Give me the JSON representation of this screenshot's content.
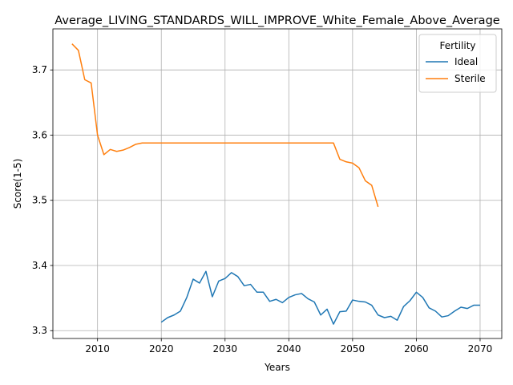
{
  "chart_data": {
    "type": "line",
    "title": "Average_LIVING_STANDARDS_WILL_IMPROVE_White_Female_Above_Average",
    "xlabel": "Years",
    "ylabel": "Score(1-5)",
    "xlim": [
      2003,
      2073.4
    ],
    "ylim": [
      3.288,
      3.763
    ],
    "xticks": [
      2010,
      2020,
      2030,
      2040,
      2050,
      2060,
      2070
    ],
    "yticks": [
      3.3,
      3.4,
      3.5,
      3.6,
      3.7
    ],
    "grid": true,
    "legend": {
      "title": "Fertility",
      "position": "top-right"
    },
    "series": [
      {
        "name": "Ideal",
        "color": "#1f77b4",
        "x": [
          2020,
          2021,
          2022,
          2023,
          2024,
          2025,
          2026,
          2027,
          2028,
          2029,
          2030,
          2031,
          2032,
          2033,
          2034,
          2035,
          2036,
          2037,
          2038,
          2039,
          2040,
          2041,
          2042,
          2043,
          2044,
          2045,
          2046,
          2047,
          2048,
          2049,
          2050,
          2051,
          2052,
          2053,
          2054,
          2055,
          2056,
          2057,
          2058,
          2059,
          2060,
          2061,
          2062,
          2063,
          2064,
          2065,
          2066,
          2067,
          2068,
          2069,
          2070
        ],
        "y": [
          3.313,
          3.32,
          3.324,
          3.33,
          3.351,
          3.379,
          3.373,
          3.391,
          3.352,
          3.376,
          3.38,
          3.389,
          3.383,
          3.369,
          3.371,
          3.359,
          3.359,
          3.345,
          3.348,
          3.343,
          3.351,
          3.355,
          3.357,
          3.349,
          3.344,
          3.324,
          3.333,
          3.31,
          3.329,
          3.33,
          3.347,
          3.345,
          3.344,
          3.339,
          3.324,
          3.32,
          3.322,
          3.316,
          3.337,
          3.346,
          3.359,
          3.351,
          3.335,
          3.33,
          3.321,
          3.323,
          3.33,
          3.336,
          3.334,
          3.339,
          3.339
        ]
      },
      {
        "name": "Sterile",
        "color": "#ff7f0e",
        "x": [
          2006,
          2007,
          2008,
          2009,
          2010,
          2011,
          2012,
          2013,
          2014,
          2015,
          2016,
          2017,
          2018,
          2019,
          2020,
          2021,
          2022,
          2023,
          2024,
          2025,
          2026,
          2027,
          2028,
          2029,
          2030,
          2031,
          2032,
          2033,
          2034,
          2035,
          2036,
          2037,
          2038,
          2039,
          2040,
          2041,
          2042,
          2043,
          2044,
          2045,
          2046,
          2047,
          2048,
          2049,
          2050,
          2051,
          2052,
          2053,
          2054
        ],
        "y": [
          3.74,
          3.73,
          3.685,
          3.68,
          3.6,
          3.57,
          3.578,
          3.575,
          3.577,
          3.581,
          3.586,
          3.588,
          3.588,
          3.588,
          3.588,
          3.588,
          3.588,
          3.588,
          3.588,
          3.588,
          3.588,
          3.588,
          3.588,
          3.588,
          3.588,
          3.588,
          3.588,
          3.588,
          3.588,
          3.588,
          3.588,
          3.588,
          3.588,
          3.588,
          3.588,
          3.588,
          3.588,
          3.588,
          3.588,
          3.588,
          3.588,
          3.588,
          3.563,
          3.559,
          3.557,
          3.55,
          3.53,
          3.523,
          3.49
        ]
      }
    ]
  }
}
